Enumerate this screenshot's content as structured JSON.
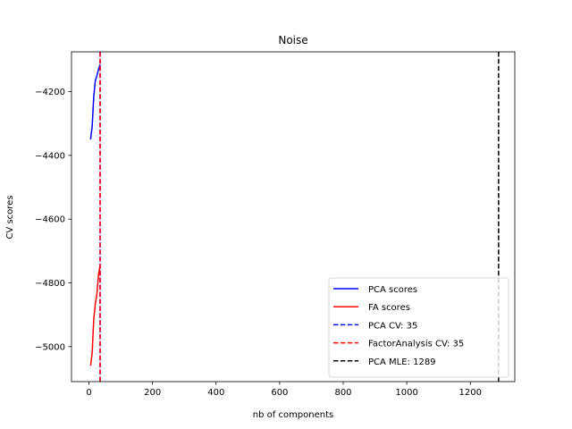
{
  "chart_data": {
    "type": "line",
    "title": "Noise",
    "xlabel": "nb of components",
    "ylabel": "CV scores",
    "xlim": [
      -55,
      1340
    ],
    "ylim": [
      -5110,
      -4075
    ],
    "xticks": [
      0,
      200,
      400,
      600,
      800,
      1000,
      1200
    ],
    "xtick_labels": [
      "0",
      "200",
      "400",
      "600",
      "800",
      "1000",
      "1200"
    ],
    "yticks": [
      -5000,
      -4800,
      -4600,
      -4400,
      -4200
    ],
    "ytick_labels": [
      "−5000",
      "−4800",
      "−4600",
      "−4400",
      "−4200"
    ],
    "grid": false,
    "legend_position": "lower right",
    "series": [
      {
        "name": "PCA scores",
        "color": "#0000ff",
        "style": "solid",
        "x": [
          5,
          10,
          15,
          20,
          25,
          30,
          35
        ],
        "y": [
          -4350,
          -4310,
          -4215,
          -4165,
          -4150,
          -4130,
          -4115
        ]
      },
      {
        "name": "FA scores",
        "color": "#ff0000",
        "style": "solid",
        "x": [
          5,
          10,
          15,
          20,
          25,
          30,
          35
        ],
        "y": [
          -5060,
          -5020,
          -4915,
          -4865,
          -4835,
          -4775,
          -4745
        ]
      }
    ],
    "vlines": [
      {
        "name": "PCA CV: 35",
        "x": 35,
        "color": "#0000ff",
        "style": "dashed"
      },
      {
        "name": "FactorAnalysis CV: 35",
        "x": 35,
        "color": "#ff0000",
        "style": "dashed"
      },
      {
        "name": "PCA MLE: 1289",
        "x": 1289,
        "color": "#000000",
        "style": "dashed"
      }
    ]
  }
}
